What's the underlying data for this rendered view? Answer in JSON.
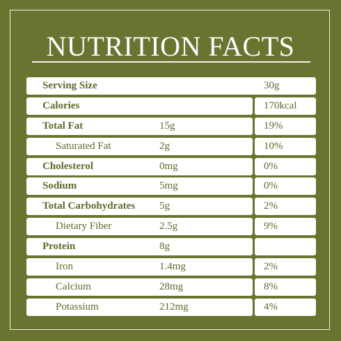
{
  "title": "NUTRITION FACTS",
  "rows": [
    {
      "label": "Serving Size",
      "amount": "",
      "dv": "30g",
      "bold": true,
      "indent": false
    },
    {
      "label": "Calories",
      "amount": "",
      "dv": "170kcal",
      "bold": true,
      "indent": false
    },
    {
      "label": "Total  Fat",
      "amount": "15g",
      "dv": "19%",
      "bold": true,
      "indent": false
    },
    {
      "label": "Saturated Fat",
      "amount": "2g",
      "dv": "10%",
      "bold": false,
      "indent": true
    },
    {
      "label": "Cholesterol",
      "amount": "0mg",
      "dv": "0%",
      "bold": true,
      "indent": false
    },
    {
      "label": "Sodium",
      "amount": "5mg",
      "dv": "0%",
      "bold": true,
      "indent": false
    },
    {
      "label": "Total Carbohydrates",
      "amount": "5g",
      "dv": "2%",
      "bold": true,
      "indent": false
    },
    {
      "label": "Dietary Fiber",
      "amount": "2.5g",
      "dv": "9%",
      "bold": false,
      "indent": true
    },
    {
      "label": "Protein",
      "amount": "8g",
      "dv": "",
      "bold": true,
      "indent": false
    },
    {
      "label": "Iron",
      "amount": "1.4mg",
      "dv": "2%",
      "bold": false,
      "indent": true
    },
    {
      "label": "Calcium",
      "amount": "28mg",
      "dv": "8%",
      "bold": false,
      "indent": true
    },
    {
      "label": "Potassium",
      "amount": "212mg",
      "dv": "4%",
      "bold": false,
      "indent": true
    }
  ],
  "colors": {
    "background": "#6a7430",
    "row_fill": "#ffffff",
    "text": "#5f6a2a"
  }
}
